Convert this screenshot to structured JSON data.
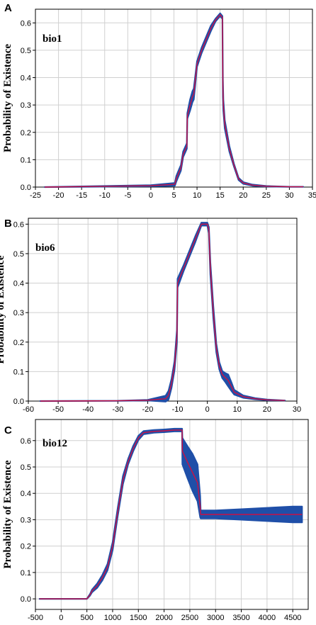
{
  "chart_data": [
    {
      "panel": "A",
      "type": "line",
      "variable_label": "bio1",
      "ylabel": "Probability of Existence",
      "xlabel": "",
      "xlim": [
        -25,
        35
      ],
      "ylim": [
        0,
        0.65
      ],
      "xticks": [
        -25,
        -20,
        -15,
        -10,
        -5,
        0,
        5,
        10,
        15,
        20,
        25,
        30,
        35
      ],
      "yticks": [
        0.0,
        0.1,
        0.2,
        0.3,
        0.4,
        0.5,
        0.6
      ],
      "grid": true,
      "series": [
        {
          "color": "#cc1144",
          "x": [
            -23,
            0,
            5.2,
            5.5,
            6,
            6.5,
            7,
            7.8,
            7.9,
            8.5,
            9,
            9.3,
            10,
            11,
            12,
            13,
            14,
            15,
            15.5,
            15.6,
            15.7,
            16,
            17,
            18,
            19,
            20,
            22,
            25,
            30,
            33
          ],
          "y": [
            0,
            0.005,
            0.01,
            0.03,
            0.05,
            0.07,
            0.12,
            0.15,
            0.26,
            0.3,
            0.33,
            0.34,
            0.45,
            0.5,
            0.54,
            0.58,
            0.61,
            0.63,
            0.62,
            0.36,
            0.3,
            0.23,
            0.14,
            0.08,
            0.03,
            0.015,
            0.007,
            0.003,
            0.001,
            0.001
          ],
          "band_half_width": [
            0,
            0.002,
            0.005,
            0.01,
            0.01,
            0.01,
            0.01,
            0.01,
            0.01,
            0.02,
            0.02,
            0.02,
            0.01,
            0.01,
            0.01,
            0.01,
            0.005,
            0.005,
            0.005,
            0.03,
            0.02,
            0.015,
            0.01,
            0.005,
            0.004,
            0.003,
            0.002,
            0.001,
            0,
            0
          ]
        }
      ]
    },
    {
      "panel": "B",
      "type": "line",
      "variable_label": "bio6",
      "ylabel": "Probability of Existence",
      "xlabel": "",
      "xlim": [
        -60,
        30
      ],
      "ylim": [
        0,
        0.62
      ],
      "xticks": [
        -60,
        -50,
        -40,
        -30,
        -20,
        -10,
        0,
        10,
        20,
        30
      ],
      "yticks": [
        0.0,
        0.1,
        0.2,
        0.3,
        0.4,
        0.5,
        0.6
      ],
      "grid": true,
      "series": [
        {
          "color": "#cc1144",
          "x": [
            -56,
            -30,
            -20,
            -14,
            -13,
            -12,
            -11,
            -10.2,
            -10,
            -8,
            -6,
            -4,
            -2,
            0,
            0.5,
            1,
            2,
            3,
            4,
            5,
            6,
            7,
            8,
            9,
            12,
            16,
            20,
            26
          ],
          "y": [
            0,
            0.001,
            0.003,
            0.008,
            0.02,
            0.06,
            0.12,
            0.22,
            0.4,
            0.45,
            0.5,
            0.55,
            0.6,
            0.6,
            0.58,
            0.45,
            0.3,
            0.18,
            0.12,
            0.09,
            0.08,
            0.07,
            0.05,
            0.03,
            0.015,
            0.008,
            0.004,
            0.002
          ],
          "band_half_width": [
            0,
            0,
            0.001,
            0.01,
            0.015,
            0.015,
            0.015,
            0.02,
            0.015,
            0.01,
            0.01,
            0.01,
            0.005,
            0.005,
            0.01,
            0.02,
            0.02,
            0.015,
            0.012,
            0.012,
            0.015,
            0.02,
            0.015,
            0.008,
            0.004,
            0.002,
            0.001,
            0
          ]
        }
      ]
    },
    {
      "panel": "C",
      "type": "line",
      "variable_label": "bio12",
      "ylabel": "Probability of Existence",
      "xlabel": "",
      "xlim": [
        -500,
        4800
      ],
      "ylim": [
        -0.04,
        0.68
      ],
      "xticks": [
        -500,
        0,
        500,
        1000,
        1500,
        2000,
        2500,
        3000,
        3500,
        4000,
        4500
      ],
      "yticks": [
        0.0,
        0.1,
        0.2,
        0.3,
        0.4,
        0.5,
        0.6
      ],
      "grid": true,
      "series": [
        {
          "color": "#cc1144",
          "x": [
            -420,
            500,
            560,
            600,
            700,
            800,
            900,
            1000,
            1100,
            1200,
            1300,
            1400,
            1500,
            1600,
            1800,
            2000,
            2200,
            2350,
            2355,
            2450,
            2550,
            2650,
            2700,
            2710,
            2800,
            3000,
            3500,
            4000,
            4500,
            4680
          ],
          "y": [
            0,
            0,
            0.015,
            0.03,
            0.05,
            0.08,
            0.12,
            0.2,
            0.33,
            0.45,
            0.52,
            0.57,
            0.61,
            0.63,
            0.635,
            0.637,
            0.64,
            0.64,
            0.56,
            0.52,
            0.48,
            0.44,
            0.35,
            0.32,
            0.32,
            0.32,
            0.32,
            0.32,
            0.32,
            0.32
          ],
          "band_half_width": [
            0,
            0,
            0.003,
            0.005,
            0.008,
            0.01,
            0.012,
            0.015,
            0.015,
            0.015,
            0.01,
            0.01,
            0.008,
            0.006,
            0.005,
            0.005,
            0.005,
            0.005,
            0.05,
            0.06,
            0.07,
            0.07,
            0.04,
            0.015,
            0.015,
            0.015,
            0.02,
            0.025,
            0.03,
            0.03
          ]
        }
      ]
    }
  ]
}
